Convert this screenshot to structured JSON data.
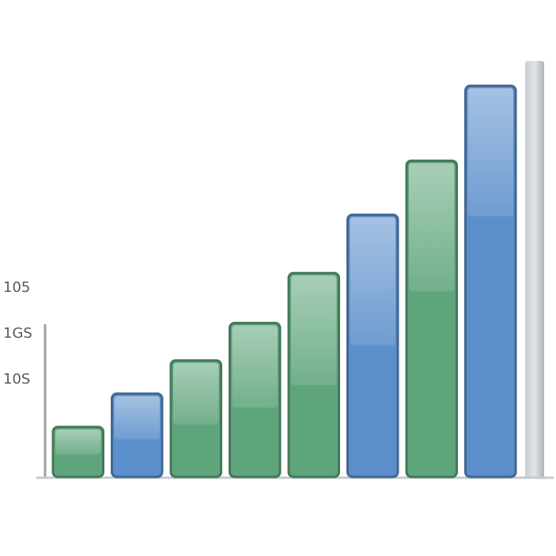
{
  "chart_data": {
    "type": "bar",
    "annotations": [
      "105",
      "1GS",
      "10S"
    ],
    "values": [
      12,
      20,
      28,
      37,
      49,
      63,
      76,
      94
    ],
    "colors": [
      "#5fa57c",
      "#5b8fcb",
      "#5fa57c",
      "#5fa57c",
      "#5fa57c",
      "#5b8fcb",
      "#5fa57c",
      "#5b8fcb"
    ],
    "ylim": [
      0,
      100
    ]
  }
}
